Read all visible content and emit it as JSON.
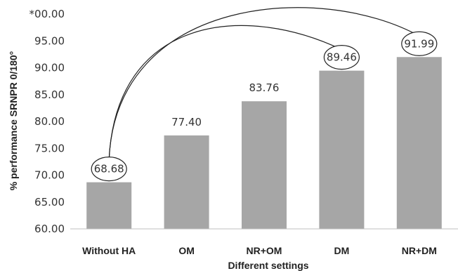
{
  "chart_data": {
    "type": "bar",
    "categories": [
      "Without HA",
      "OM",
      "NR+OM",
      "DM",
      "NR+DM"
    ],
    "values": [
      68.68,
      77.4,
      83.76,
      89.46,
      91.99
    ],
    "data_labels": [
      "68.68",
      "77.40",
      "83.76",
      "89.46",
      "91.99"
    ],
    "xlabel": "Different settings",
    "ylabel": "% performance  SRNPR 0/180°",
    "ylim": [
      60,
      100
    ],
    "yticks": [
      "60.00",
      "65.00",
      "70.00",
      "75.00",
      "80.00",
      "85.00",
      "90.00",
      "95.00",
      "*00.00"
    ],
    "ytick_values": [
      60,
      65,
      70,
      75,
      80,
      85,
      90,
      95,
      100
    ],
    "grid": false,
    "bar_color": "#a6a6a6",
    "circled_labels": [
      "Without HA",
      "DM",
      "NR+DM"
    ],
    "comparison_arcs": [
      {
        "from": "Without HA",
        "to": "DM"
      },
      {
        "from": "Without HA",
        "to": "NR+DM"
      }
    ]
  }
}
